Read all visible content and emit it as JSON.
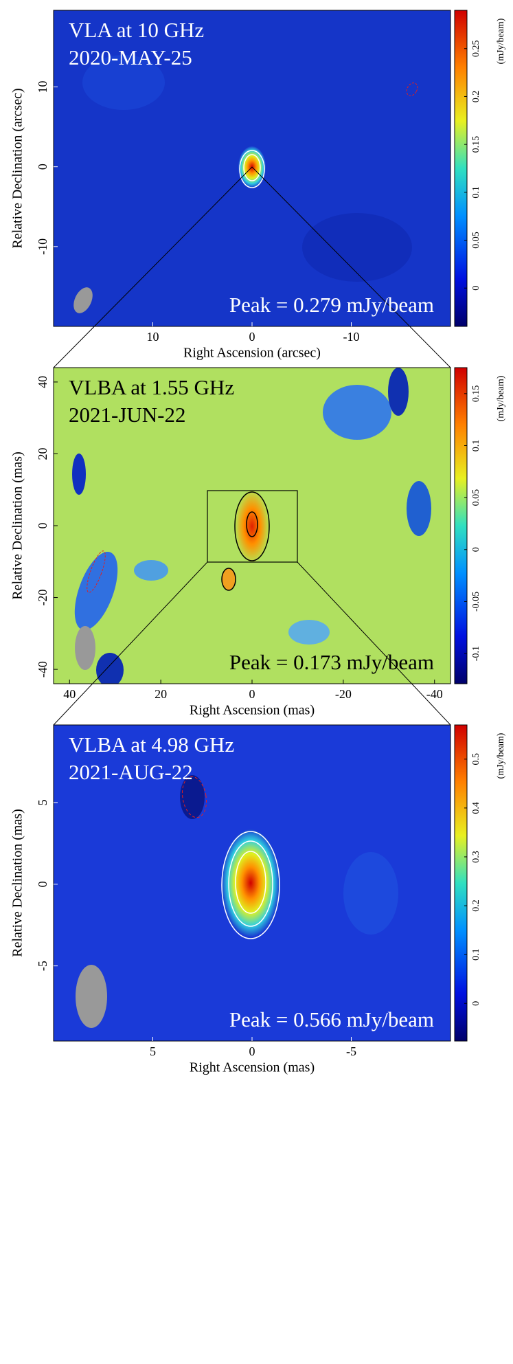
{
  "chart_data": [
    {
      "type": "image",
      "title": "VLA at 10 GHz",
      "subtitle": "2020-MAY-25",
      "annotation": "Peak = 0.279 mJy/beam",
      "xlabel": "Right Ascension (arcsec)",
      "ylabel": "Relative Declination (arcsec)",
      "xlim": [
        20,
        -20
      ],
      "ylim": [
        -20,
        19.6
      ],
      "xticks": [
        10,
        0,
        -10
      ],
      "yticks": [
        -10,
        0,
        10
      ],
      "colorbar": {
        "label": "(mJy/beam)",
        "clim": [
          -0.04,
          0.29
        ],
        "ticks": [
          0,
          0.05,
          0.1,
          0.15,
          0.2,
          0.25
        ]
      }
    },
    {
      "type": "image",
      "title": "VLBA at 1.55 GHz",
      "subtitle": "2021-JUN-22",
      "annotation": "Peak = 0.173 mJy/beam",
      "xlabel": "Right Ascension (mas)",
      "ylabel": "Relative Declination (mas)",
      "xlim": [
        43.5,
        -43.5
      ],
      "ylim": [
        -44,
        44
      ],
      "xticks": [
        40,
        20,
        0,
        -20,
        -40
      ],
      "yticks": [
        -40,
        -20,
        0,
        20,
        40
      ],
      "colorbar": {
        "label": "(mJy/beam)",
        "clim": [
          -0.129,
          0.175
        ],
        "ticks": [
          -0.1,
          -0.05,
          0,
          0.05,
          0.1,
          0.15
        ]
      }
    },
    {
      "type": "image",
      "title": "VLBA at 4.98 GHz",
      "subtitle": "2021-AUG-22",
      "annotation": "Peak = 0.566 mJy/beam",
      "xlabel": "Right Ascension (mas)",
      "ylabel": "Relative Declination (mas)",
      "xlim": [
        10,
        -10
      ],
      "ylim": [
        -9.6,
        9.75
      ],
      "xticks": [
        5,
        0,
        -5
      ],
      "yticks": [
        -5,
        0,
        5
      ],
      "colorbar": {
        "label": "(mJy/beam)",
        "clim": [
          -0.077,
          0.57
        ],
        "ticks": [
          0,
          0.1,
          0.2,
          0.3,
          0.4,
          0.5
        ]
      }
    }
  ]
}
